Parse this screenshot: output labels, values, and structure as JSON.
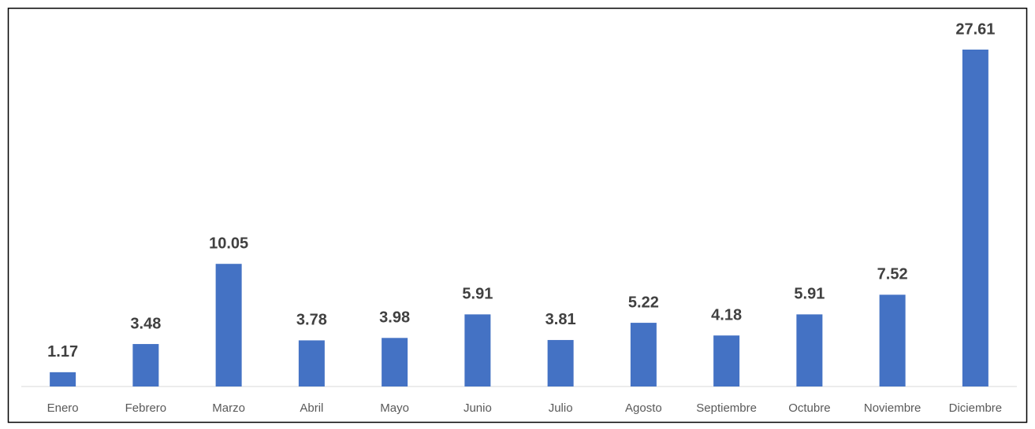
{
  "chart_data": {
    "type": "bar",
    "categories": [
      "Enero",
      "Febrero",
      "Marzo",
      "Abril",
      "Mayo",
      "Junio",
      "Julio",
      "Agosto",
      "Septiembre",
      "Octubre",
      "Noviembre",
      "Diciembre"
    ],
    "values": [
      1.17,
      3.48,
      10.05,
      3.78,
      3.98,
      5.91,
      3.81,
      5.22,
      4.18,
      5.91,
      7.52,
      27.61
    ],
    "color": "#4472c4"
  }
}
